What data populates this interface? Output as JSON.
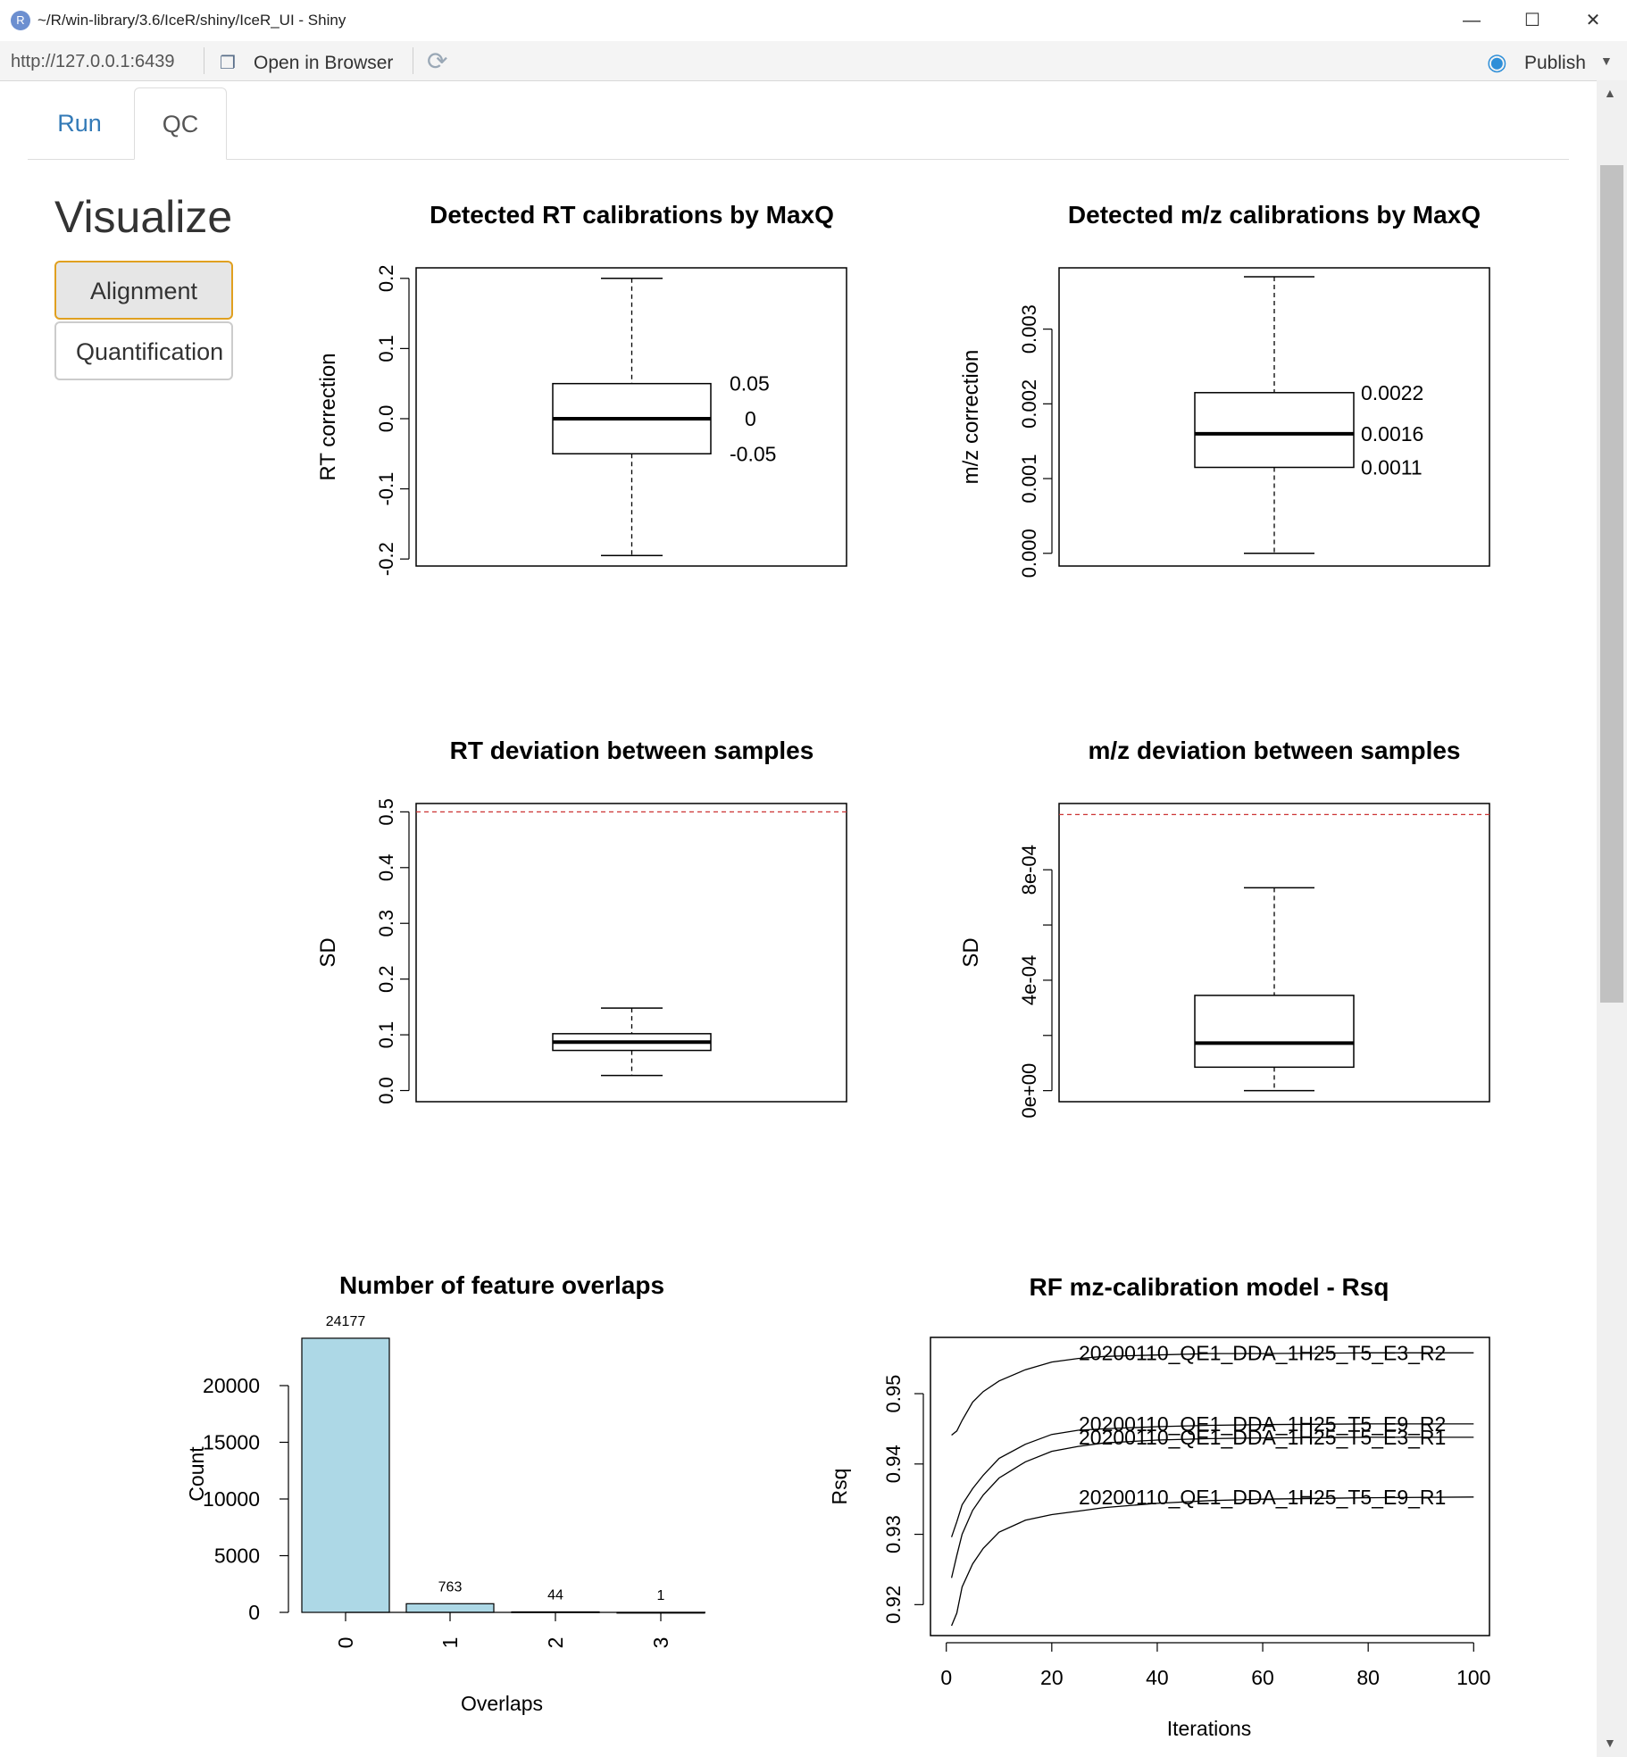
{
  "window": {
    "title": "~/R/win-library/3.6/IceR/shiny/IceR_UI - Shiny",
    "minimize": "—",
    "maximize": "☐",
    "close": "✕"
  },
  "toolbar": {
    "url": "http://127.0.0.1:6439",
    "open_in_browser": "Open in Browser",
    "publish": "Publish"
  },
  "tabs": [
    {
      "label": "Run",
      "active": false
    },
    {
      "label": "QC",
      "active": true
    }
  ],
  "sidebar": {
    "title": "Visualize",
    "buttons": [
      "Alignment",
      "Quantification"
    ]
  },
  "chart_data": [
    {
      "type": "boxplot",
      "title": "Detected RT calibrations by MaxQ",
      "ylabel": "RT correction",
      "ylim": [
        -0.21,
        0.215
      ],
      "yticks": [
        -0.2,
        -0.1,
        0.0,
        0.1,
        0.2
      ],
      "ytick_labels": [
        "-0.2",
        "-0.1",
        "0.0",
        "0.1",
        "0.2"
      ],
      "whisker_low": -0.195,
      "q1": -0.05,
      "median": 0,
      "q3": 0.05,
      "whisker_high": 0.2,
      "annotations": [
        "0.05",
        "0",
        "-0.05"
      ]
    },
    {
      "type": "boxplot",
      "title": "Detected m/z calibrations by MaxQ",
      "ylabel": "m/z correction",
      "ylim": [
        -0.00017,
        0.00382
      ],
      "yticks": [
        0.0,
        0.001,
        0.002,
        0.003
      ],
      "ytick_labels": [
        "0.000",
        "0.001",
        "0.002",
        "0.003"
      ],
      "whisker_low": 0.0,
      "q1": 0.00115,
      "median": 0.0016,
      "q3": 0.00215,
      "whisker_high": 0.0037,
      "annotations": [
        "0.0022",
        "0.0016",
        "0.0011"
      ]
    },
    {
      "type": "boxplot",
      "title": "RT deviation between samples",
      "ylabel": "SD",
      "ylim": [
        -0.02,
        0.515
      ],
      "yticks": [
        0.0,
        0.1,
        0.2,
        0.3,
        0.4,
        0.5
      ],
      "ytick_labels": [
        "0.0",
        "0.1",
        "0.2",
        "0.3",
        "0.4",
        "0.5"
      ],
      "whisker_low": 0.027,
      "q1": 0.072,
      "median": 0.087,
      "q3": 0.102,
      "whisker_high": 0.148,
      "threshold": 0.5,
      "threshold_color": "#cc3333"
    },
    {
      "type": "boxplot",
      "title": "m/z deviation between samples",
      "ylabel": "SD",
      "ylim": [
        -4e-05,
        0.00104
      ],
      "yticks": [
        0.0,
        0.0002,
        0.0004,
        0.0006,
        0.0008
      ],
      "ytick_labels": [
        "0e+00",
        "",
        "4e-04",
        "",
        "8e-04"
      ],
      "whisker_low": 0.0,
      "q1": 8.5e-05,
      "median": 0.000172,
      "q3": 0.000345,
      "whisker_high": 0.000735,
      "threshold": 0.001,
      "threshold_color": "#cc3333"
    },
    {
      "type": "bar",
      "title": "Number of feature overlaps",
      "xlabel": "Overlaps",
      "ylabel": "Count",
      "categories": [
        "0",
        "1",
        "2",
        "3"
      ],
      "values": [
        24177,
        763,
        44,
        1
      ],
      "value_labels": [
        "24177",
        "763",
        "44",
        "1"
      ],
      "ylim": [
        0,
        20000
      ],
      "yticks": [
        0,
        5000,
        10000,
        15000,
        20000
      ],
      "ytick_labels": [
        "0",
        "5000",
        "10000",
        "15000",
        "20000"
      ],
      "bar_color": "#add8e6"
    },
    {
      "type": "line",
      "title": "RF mz-calibration model - Rsq",
      "xlabel": "Iterations",
      "ylabel": "Rsq",
      "xlim": [
        -3,
        103
      ],
      "ylim": [
        0.9156,
        0.958
      ],
      "xticks": [
        0,
        20,
        40,
        60,
        80,
        100
      ],
      "xtick_labels": [
        "0",
        "20",
        "40",
        "60",
        "80",
        "100"
      ],
      "yticks": [
        0.92,
        0.93,
        0.94,
        0.95
      ],
      "ytick_labels": [
        "0.92",
        "0.93",
        "0.94",
        "0.95"
      ],
      "series": [
        {
          "name": "20200110_QE1_DDA_1H25_T5_E3_R2",
          "x": [
            1,
            2,
            3,
            5,
            7,
            10,
            15,
            20,
            25,
            30,
            40,
            50,
            60,
            80,
            100
          ],
          "y": [
            0.9441,
            0.9447,
            0.9462,
            0.9488,
            0.9503,
            0.9518,
            0.9534,
            0.9545,
            0.955,
            0.9553,
            0.9555,
            0.9557,
            0.9557,
            0.9558,
            0.9558
          ]
        },
        {
          "name": "20200110_QE1_DDA_1H25_T5_E9_R2",
          "x": [
            1,
            2,
            3,
            5,
            7,
            10,
            15,
            20,
            25,
            30,
            40,
            50,
            60,
            80,
            100
          ],
          "y": [
            0.9296,
            0.9318,
            0.9342,
            0.9365,
            0.9384,
            0.9408,
            0.9428,
            0.9442,
            0.9448,
            0.945,
            0.9453,
            0.9455,
            0.9456,
            0.9457,
            0.9457
          ]
        },
        {
          "name": "20200110_QE1_DDA_1H25_T5_E3_R1",
          "x": [
            1,
            2,
            3,
            5,
            7,
            10,
            15,
            20,
            25,
            30,
            40,
            50,
            60,
            80,
            100
          ],
          "y": [
            0.9238,
            0.927,
            0.93,
            0.9334,
            0.9356,
            0.938,
            0.9403,
            0.9418,
            0.9425,
            0.943,
            0.9434,
            0.9436,
            0.9437,
            0.9438,
            0.9438
          ]
        },
        {
          "name": "20200110_QE1_DDA_1H25_T5_E9_R1",
          "x": [
            1,
            2,
            3,
            5,
            7,
            10,
            15,
            20,
            25,
            30,
            40,
            50,
            60,
            80,
            100
          ],
          "y": [
            0.917,
            0.9188,
            0.9225,
            0.9258,
            0.928,
            0.9303,
            0.932,
            0.9328,
            0.9333,
            0.9338,
            0.9344,
            0.9348,
            0.935,
            0.9352,
            0.9353
          ]
        }
      ]
    }
  ]
}
